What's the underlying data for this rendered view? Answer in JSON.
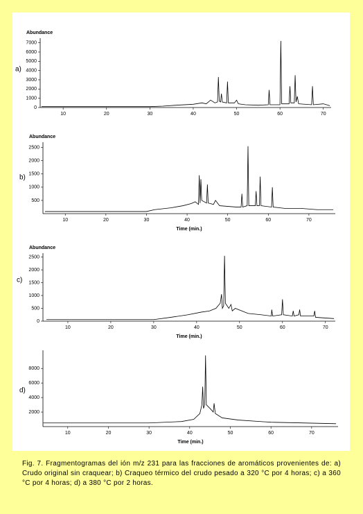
{
  "chart_data": [
    {
      "type": "line",
      "panel_label": "a)",
      "y_label": "Abundance",
      "color": "#000000",
      "x": [
        5,
        30,
        33,
        36,
        40,
        42,
        43,
        44,
        45,
        45.6,
        45.8,
        46,
        46.3,
        46.5,
        46.7,
        47.7,
        47.9,
        48.1,
        49.5,
        50,
        50.4,
        52,
        55,
        57.3,
        57.5,
        57.7,
        60,
        60.2,
        60.4,
        62.1,
        62.3,
        62.5,
        63.3,
        63.5,
        63.7,
        64,
        64.3,
        67.3,
        67.5,
        67.7,
        70,
        71.5
      ],
      "values": [
        100,
        100,
        150,
        250,
        350,
        500,
        400,
        800,
        500,
        600,
        3300,
        700,
        600,
        1500,
        600,
        500,
        2800,
        500,
        500,
        800,
        400,
        300,
        250,
        300,
        1900,
        300,
        300,
        7200,
        400,
        400,
        2300,
        500,
        500,
        3500,
        600,
        1200,
        400,
        300,
        2300,
        300,
        400,
        200
      ],
      "xlim": [
        4.7,
        71.8
      ],
      "ylim": [
        0,
        7500
      ],
      "xticks": [
        10,
        20,
        30,
        40,
        50,
        60,
        70
      ],
      "yticks": [
        0,
        1000,
        2000,
        3000,
        4000,
        5000,
        6000,
        7000
      ]
    },
    {
      "type": "line",
      "panel_label": "b)",
      "y_label": "Abundance",
      "x_label": "Time (min.)",
      "color": "#000000",
      "x": [
        5,
        30,
        32,
        36,
        39,
        41,
        42,
        42.8,
        43,
        43.2,
        43.4,
        43.6,
        44.8,
        45,
        45.2,
        46.5,
        47,
        48,
        52,
        53.3,
        53.5,
        53.7,
        54.8,
        55,
        55.2,
        56.8,
        57,
        57.2,
        57.8,
        58,
        58.2,
        60.8,
        61,
        61.2,
        64,
        68,
        72,
        76
      ],
      "values": [
        80,
        80,
        150,
        220,
        300,
        380,
        450,
        350,
        1450,
        400,
        1300,
        500,
        400,
        1100,
        400,
        350,
        500,
        300,
        250,
        250,
        750,
        250,
        300,
        2550,
        300,
        300,
        850,
        300,
        300,
        1400,
        300,
        250,
        1000,
        250,
        200,
        200,
        150,
        150
      ],
      "xlim": [
        4.5,
        76.5
      ],
      "ylim": [
        0,
        2700
      ],
      "xticks": [
        10,
        20,
        30,
        40,
        50,
        60,
        70
      ],
      "yticks": [
        500,
        1000,
        1500,
        2000,
        2500
      ]
    },
    {
      "type": "line",
      "panel_label": "c)",
      "y_label": "Abundance",
      "x_label": "Time (min.)",
      "color": "#000000",
      "x": [
        5,
        30,
        34,
        38,
        41,
        43,
        44.5,
        45.5,
        45.8,
        46,
        46.3,
        46.5,
        46.7,
        47.5,
        48,
        48.3,
        49,
        52,
        55,
        57.4,
        57.5,
        57.7,
        59.8,
        60,
        60.2,
        62.3,
        62.5,
        62.7,
        63.8,
        64,
        64.2,
        67.3,
        67.5,
        67.7,
        72
      ],
      "values": [
        60,
        60,
        150,
        250,
        350,
        400,
        500,
        700,
        1050,
        500,
        600,
        2550,
        700,
        500,
        650,
        400,
        500,
        300,
        250,
        200,
        450,
        200,
        250,
        850,
        250,
        200,
        400,
        200,
        250,
        450,
        200,
        200,
        400,
        150,
        100
      ],
      "xlim": [
        4.2,
        72.3
      ],
      "ylim": [
        0,
        2650
      ],
      "xticks": [
        10,
        20,
        30,
        40,
        50,
        60,
        70
      ],
      "yticks": [
        0,
        500,
        1000,
        1500,
        2000,
        2500
      ]
    },
    {
      "type": "line",
      "panel_label": "d)",
      "x_label": "Time (min.)",
      "color": "#000000",
      "x": [
        4,
        30,
        38,
        41,
        42.5,
        43,
        43.2,
        43.4,
        43.7,
        43.9,
        44.1,
        45,
        45.8,
        46,
        46.3,
        48,
        52,
        60,
        76
      ],
      "values": [
        500,
        500,
        700,
        1000,
        1800,
        3000,
        5500,
        2500,
        3000,
        9800,
        3000,
        2500,
        2000,
        3200,
        1800,
        1200,
        900,
        600,
        400
      ],
      "xlim": [
        3.9,
        76.5
      ],
      "ylim": [
        0,
        10500
      ],
      "xticks": [
        10,
        20,
        30,
        40,
        50,
        60,
        70
      ],
      "yticks": [
        2000,
        4000,
        6000,
        8000
      ]
    }
  ],
  "caption": "Fig. 7. Fragmentogramas del ión m/z 231 para las fracciones de aromáticos provenientes de:  a) Crudo original sin craquear; b) Craqueo térmico del crudo pesado a 320 °C por 4 horas;  c) a 360 °C por 4 horas; d) a 380 °C por 2 horas."
}
